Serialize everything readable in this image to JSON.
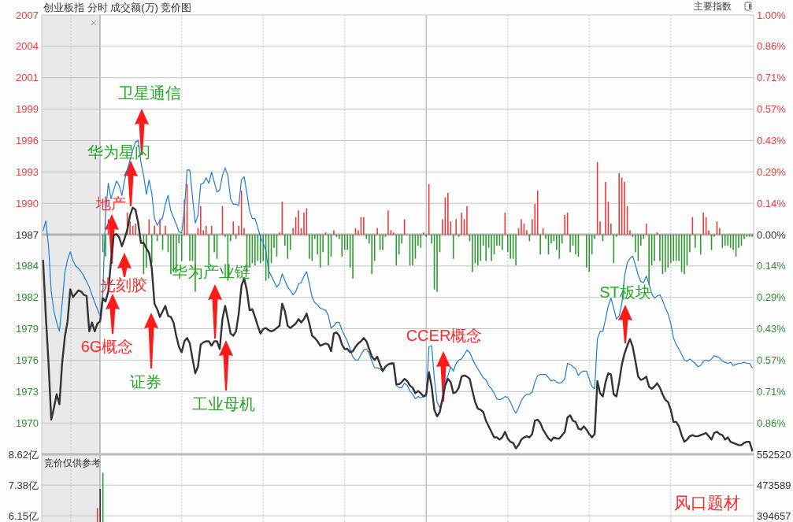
{
  "chart_data": [
    {
      "type": "line",
      "title": "创业板指 分时 成交额(万) 竞价图",
      "categories": [
        null,
        null,
        null,
        null,
        null,
        null,
        null,
        null,
        null,
        null,
        null,
        null,
        null,
        null,
        null,
        null,
        null,
        null,
        null,
        null,
        null,
        null,
        null,
        null,
        null,
        null,
        null,
        null,
        null,
        null,
        null,
        null,
        null,
        null,
        null,
        null,
        null,
        null,
        null,
        null,
        null,
        null,
        null,
        null,
        null,
        null,
        null,
        null,
        null,
        null,
        null,
        null,
        null,
        null,
        null,
        null,
        null,
        null,
        null,
        null,
        null,
        null,
        null,
        null,
        null,
        null,
        null,
        null,
        null,
        null,
        null,
        null,
        null,
        null,
        null,
        null,
        null,
        null,
        null,
        null,
        null,
        null,
        null,
        null,
        null,
        null,
        null,
        null,
        null,
        null,
        null,
        null,
        null,
        null,
        null,
        null,
        null,
        null,
        null,
        null,
        null,
        null,
        null,
        null,
        null,
        null,
        null,
        null,
        null,
        null,
        null,
        null,
        null,
        null,
        null,
        null,
        null,
        null,
        null,
        null,
        null,
        null,
        null,
        null,
        null,
        null,
        null,
        null,
        null,
        null,
        null,
        null,
        null,
        null,
        null,
        null,
        null,
        null,
        null,
        null,
        null,
        null,
        null,
        null,
        null,
        null,
        null,
        null,
        null,
        null,
        null,
        null,
        null,
        null,
        null,
        null,
        null,
        null,
        null,
        null,
        null,
        null,
        null,
        null,
        null,
        null,
        null,
        null,
        null,
        null,
        null,
        null,
        null,
        null,
        null,
        null,
        null,
        null,
        null,
        null,
        null,
        null,
        null,
        null,
        null,
        null,
        null,
        null,
        null,
        null,
        null,
        null,
        null,
        null,
        null,
        null,
        null,
        null,
        null,
        null,
        null,
        null,
        null,
        null,
        null,
        null,
        null,
        null,
        null,
        null,
        null,
        null,
        null,
        null,
        null,
        null,
        null,
        null,
        null,
        null,
        null,
        null,
        null,
        null,
        null,
        null,
        null,
        null,
        null,
        null,
        null,
        null,
        null,
        null,
        null,
        null,
        null,
        null,
        null,
        null,
        null,
        null,
        null,
        null,
        null,
        null,
        null,
        null,
        null,
        null,
        null,
        null,
        null,
        null,
        null,
        null,
        null,
        null,
        null,
        null,
        null,
        null
      ],
      "series": [
        {
          "type": "bar",
          "axis": "y2",
          "color": "#ee3b3b",
          "values": [
            null,
            null,
            null,
            null,
            null,
            null,
            null,
            null,
            null,
            null,
            null,
            null,
            null,
            null,
            null,
            null,
            null,
            null,
            null,
            null,
            null,
            null,
            null,
            null,
            0.07,
            null,
            null,
            null,
            null,
            null,
            null,
            0.1,
            0.06,
            0.04,
            0.05,
            null,
            null,
            null,
            null,
            0.07,
            null,
            0.04,
            null,
            0.07,
            null,
            0.04,
            null,
            null,
            null,
            null,
            null,
            null,
            0.16,
            0.23,
            null,
            null,
            null,
            0.03,
            0.13,
            0.02,
            0.04,
            null,
            0.04,
            null,
            null,
            null,
            0.13,
            null,
            null,
            null,
            0.06,
            null,
            0.04,
            0.2,
            0.03,
            null,
            null,
            null,
            null,
            null,
            null,
            null,
            null,
            null,
            null,
            null,
            null,
            0.01,
            0.15,
            null,
            null,
            null,
            0.03,
            0.08,
            0.11,
            0.03,
            0.1,
            0.12,
            null,
            null,
            null,
            null,
            null,
            null,
            0.01,
            null,
            null,
            0.02,
            null,
            null,
            null,
            null,
            null,
            null,
            null,
            0.03,
            0.02,
            0.08,
            0.08,
            null,
            null,
            null,
            null,
            0.03,
            null,
            null,
            null,
            0.11,
            0.02,
            0.01,
            null,
            null,
            null,
            0.07,
            null,
            null,
            null,
            null,
            null,
            null,
            0.01,
            null,
            0.23,
            null,
            null,
            null,
            null,
            0.07,
            0.17,
            0.19,
            0.06,
            null,
            0.07,
            null,
            0.1,
            0.07,
            0.13,
            null,
            null,
            null,
            null,
            null,
            null,
            null,
            null,
            null,
            null,
            null,
            null,
            null,
            0.1,
            null,
            null,
            null,
            null,
            0.03,
            0.07,
            0.05,
            0.02,
            null,
            0.07,
            0.14,
            0.2,
            null,
            0.03,
            null,
            null,
            null,
            null,
            null,
            null,
            null,
            0.09,
            0.1,
            null,
            null,
            null,
            null,
            null,
            null,
            null,
            null,
            null,
            null,
            0.33,
            0.06,
            null,
            0.24,
            0.15,
            0.05,
            null,
            null,
            0.28,
            0.26,
            0.24,
            0.13,
            0.02,
            null,
            null,
            null,
            null,
            null,
            0.05,
            null,
            null,
            null,
            0.01,
            null,
            null,
            null,
            null,
            null,
            null,
            null,
            null,
            null,
            null,
            null,
            null,
            0.08,
            null,
            null,
            null,
            0.1,
            0.08,
            0.02,
            null,
            null,
            0.06,
            0.03,
            null,
            null,
            null,
            null,
            null,
            null,
            null,
            null,
            null,
            null,
            null,
            null
          ]
        },
        {
          "type": "bar",
          "axis": "y2",
          "color": "#2f9a2f",
          "values": [
            null,
            null,
            null,
            null,
            null,
            null,
            null,
            null,
            null,
            null,
            null,
            null,
            null,
            null,
            null,
            null,
            null,
            null,
            null,
            null,
            null,
            null,
            -0.08,
            -0.1,
            null,
            null,
            null,
            null,
            null,
            null,
            null,
            null,
            null,
            null,
            null,
            null,
            null,
            -0.18,
            -0.15,
            null,
            -0.13,
            null,
            -0.03,
            null,
            -0.07,
            null,
            -0.08,
            -0.18,
            -0.17,
            -0.17,
            -0.04,
            -0.12,
            null,
            null,
            -0.12,
            -0.12,
            -0.26,
            null,
            null,
            null,
            null,
            -0.14,
            null,
            -0.08,
            -0.11,
            null,
            null,
            -0.01,
            -0.21,
            -0.03,
            null,
            -0.02,
            null,
            null,
            null,
            -0.17,
            -0.15,
            -0.13,
            -0.14,
            -0.12,
            -0.13,
            -0.12,
            -0.21,
            -0.2,
            -0.13,
            -0.06,
            -0.1,
            null,
            null,
            -0.05,
            -0.11,
            -0.07,
            null,
            null,
            null,
            null,
            null,
            null,
            -0.11,
            -0.12,
            -0.02,
            -0.09,
            -0.15,
            -0.08,
            null,
            -0.14,
            -0.1,
            null,
            -0.01,
            -0.02,
            -0.1,
            -0.07,
            -0.07,
            -0.15,
            -0.2,
            null,
            null,
            null,
            null,
            -0.02,
            -0.04,
            -0.18,
            -0.12,
            null,
            -0.07,
            -0.07,
            -0.01,
            null,
            null,
            null,
            -0.14,
            -0.09,
            -0.04,
            null,
            null,
            -0.14,
            -0.14,
            -0.11,
            -0.05,
            -0.06,
            null,
            -0.01,
            null,
            -0.04,
            -0.25,
            -0.26,
            -0.08,
            null,
            null,
            null,
            null,
            -0.11,
            null,
            -0.01,
            null,
            null,
            null,
            -0.03,
            -0.17,
            -0.13,
            -0.14,
            -0.12,
            -0.05,
            -0.12,
            -0.06,
            -0.12,
            -0.09,
            -0.05,
            -0.05,
            -0.07,
            null,
            -0.08,
            -0.11,
            -0.11,
            -0.14,
            null,
            null,
            null,
            null,
            -0.03,
            null,
            null,
            null,
            -0.09,
            null,
            -0.02,
            -0.09,
            -0.04,
            -0.03,
            -0.07,
            -0.11,
            -0.04,
            null,
            null,
            -0.08,
            -0.05,
            -0.09,
            -0.1,
            null,
            null,
            -0.15,
            -0.17,
            -0.09,
            -0.02,
            null,
            null,
            -0.03,
            null,
            null,
            null,
            -0.13,
            -0.01,
            null,
            null,
            null,
            null,
            null,
            -0.01,
            -0.08,
            -0.12,
            -0.05,
            -0.02,
            null,
            -0.23,
            -0.14,
            -0.12,
            null,
            -0.12,
            -0.18,
            -0.17,
            -0.15,
            -0.13,
            -0.12,
            -0.12,
            -0.12,
            -0.17,
            -0.18,
            -0.14,
            -0.08,
            null,
            -0.06,
            null,
            -0.09,
            null,
            null,
            null,
            -0.07,
            -0.01,
            null,
            null,
            -0.06,
            -0.05,
            -0.05,
            -0.06,
            -0.07,
            -0.1,
            -0.06,
            -0.05,
            -0.02,
            -0.01,
            -0.01,
            -0.01
          ]
        },
        {
          "color": "#333333",
          "values": [
            1984.9,
            1979.9,
            1975.6,
            1970.5,
            1971.6,
            1972.8,
            1971.9,
            1975.6,
            1978.0,
            1979.4,
            1982.3,
            1981.6,
            1981.9,
            1982.2,
            1982.1,
            1981.8,
            1981.7,
            1978.5,
            1979.3,
            1978.5,
            1979.2,
            1979.4,
            1981.5,
            1981.2,
            1982.1,
            1984.9,
            1987.2,
            1987.3,
            1987.0,
            1986.2,
            1986.9,
            1987.7,
            1989.0,
            1989.7,
            1989.5,
            1988.3,
            1986.5,
            1986.5,
            1986.0,
            1985.6,
            1984.2,
            1981.0,
            1980.5,
            1979.8,
            1980.3,
            1980.8,
            1979.9,
            1979.8,
            1979.3,
            1978.1,
            1977.1,
            1976.6,
            1977.6,
            1977.9,
            1977.4,
            1976.0,
            1974.7,
            1975.3,
            1977.3,
            1977.5,
            1977.6,
            1977.6,
            1977.2,
            1977.6,
            1977.6,
            1976.9,
            1979.6,
            1980.8,
            1979.6,
            1978.3,
            1978.1,
            1978.5,
            1980.1,
            1982.6,
            1983.3,
            1982.2,
            1980.4,
            1980.5,
            1979.8,
            1979.0,
            1978.3,
            1978.7,
            1978.8,
            1978.6,
            1978.5,
            1978.6,
            1978.8,
            1979.0,
            1981.0,
            1980.3,
            1979.0,
            1978.8,
            1979.0,
            1979.2,
            1979.6,
            1979.3,
            1979.6,
            1980.1,
            1979.2,
            1978.1,
            1977.9,
            1977.6,
            1977.2,
            1977.3,
            1977.4,
            1977.3,
            1976.7,
            1978.3,
            1978.4,
            1978.1,
            1977.3,
            1976.9,
            1976.9,
            1976.6,
            1976.7,
            1977.1,
            1977.4,
            1977.6,
            1977.9,
            1977.6,
            1976.9,
            1976.2,
            1975.9,
            1976.2,
            1975.5,
            1974.9,
            1975.3,
            1975.5,
            1975.6,
            1975.6,
            1973.7,
            1973.7,
            1973.9,
            1974.2,
            1974.0,
            1973.6,
            1973.4,
            1972.9,
            1973.1,
            1972.9,
            1972.6,
            1972.8,
            1974.8,
            1973.5,
            1971.4,
            1970.8,
            1971.2,
            1972.4,
            1973.6,
            1974.2,
            1973.9,
            1972.9,
            1973.0,
            1973.4,
            1974.4,
            1974.5,
            1974.4,
            1974.2,
            1973.1,
            1972.1,
            1971.5,
            1971.4,
            1971.2,
            1970.4,
            1969.9,
            1969.4,
            1968.9,
            1968.9,
            1968.7,
            1968.9,
            1969.4,
            1968.8,
            1968.5,
            1968.4,
            1967.9,
            1968.2,
            1968.7,
            1968.9,
            1969.0,
            1968.9,
            1969.2,
            1970.4,
            1970.5,
            1970.2,
            1969.6,
            1969.2,
            1968.8,
            1968.6,
            1968.9,
            1968.8,
            1968.8,
            1969.1,
            1969.4,
            1970.7,
            1970.9,
            1970.4,
            1970.3,
            1969.7,
            1969.6,
            1969.9,
            1969.6,
            1969.2,
            1968.9,
            1969.2,
            1974.0,
            1972.9,
            1972.6,
            1973.9,
            1974.7,
            1974.6,
            1972.8,
            1972.6,
            1973.9,
            1975.5,
            1976.5,
            1977.2,
            1977.8,
            1977.1,
            1975.8,
            1974.4,
            1974.1,
            1974.2,
            1974.4,
            1973.5,
            1973.3,
            1973.5,
            1973.8,
            1973.4,
            1972.8,
            1972.3,
            1972.1,
            1971.4,
            1970.3,
            1970.3,
            1969.9,
            1969.1,
            1968.5,
            1968.7,
            1969.0,
            1969.1,
            1969.0,
            1969.0,
            1969.1,
            1969.2,
            1969.3,
            1969.0,
            1968.7,
            1969.3,
            1969.4,
            1969.2,
            1969.1,
            1968.7,
            1968.9,
            1968.5,
            1968.4,
            1968.3,
            1968.2,
            1968.2,
            1968.4,
            1968.5,
            1968.5,
            1967.7
          ]
        },
        {
          "color": "#1c7ed6",
          "values": [
            1987.6,
            1988.5,
            1986.2,
            1982.1,
            1980.3,
            1979.3,
            1978.5,
            1981.0,
            1983.8,
            1985.0,
            1985.7,
            1984.9,
            1984.4,
            1984.2,
            1983.9,
            1983.5,
            1983.0,
            1982.5,
            1981.8,
            1981.1,
            1980.5,
            1979.9,
            1982.1,
            1989.2,
            1991.9,
            1990.5,
            1991.3,
            1992.1,
            1991.7,
            1990.8,
            1992.2,
            1993.1,
            1994.0,
            1994.9,
            1995.6,
            1995.8,
            1993.8,
            1992.6,
            1990.9,
            1992.2,
            1991.0,
            1988.7,
            1988.1,
            1988.5,
            1988.8,
            1990.0,
            1990.8,
            1989.4,
            1988.8,
            1988.2,
            1987.5,
            1987.4,
            1989.5,
            1993.1,
            1993.1,
            1990.6,
            1988.3,
            1989.0,
            1991.8,
            1991.9,
            1992.4,
            1991.9,
            1992.9,
            1992.0,
            1991.1,
            1991.3,
            1992.6,
            1993.3,
            1992.6,
            1990.5,
            1990.0,
            1990.0,
            1989.9,
            1992.2,
            1992.5,
            1991.0,
            1989.4,
            1988.7,
            1988.7,
            1987.9,
            1987.0,
            1986.5,
            1985.8,
            1984.0,
            1983.5,
            1983.0,
            1982.5,
            1982.8,
            1983.7,
            1983.1,
            1982.5,
            1982.2,
            1981.8,
            1982.1,
            1982.8,
            1982.9,
            1983.5,
            1983.9,
            1982.8,
            1981.6,
            1981.1,
            1980.9,
            1980.6,
            1980.5,
            1980.4,
            1979.9,
            1978.8,
            1979.0,
            1979.3,
            1979.3,
            1978.6,
            1978.1,
            1977.6,
            1976.9,
            1976.2,
            1975.9,
            1975.9,
            1976.4,
            1976.8,
            1976.9,
            1976.5,
            1975.8,
            1975.2,
            1975.2,
            1975.1,
            1974.9,
            1975.3,
            1975.5,
            1975.5,
            1975.5,
            1973.6,
            1973.4,
            1973.4,
            1973.8,
            1973.6,
            1973.1,
            1972.8,
            1972.4,
            1972.6,
            1972.5,
            1972.6,
            1972.6,
            1977.1,
            1977.2,
            1974.2,
            1972.1,
            1971.6,
            1972.4,
            1973.9,
            1974.5,
            1975.3,
            1974.9,
            1975.6,
            1975.9,
            1976.0,
            1976.4,
            1976.8,
            1976.6,
            1976.0,
            1975.5,
            1975.1,
            1974.7,
            1974.3,
            1974.1,
            1973.6,
            1973.3,
            1972.9,
            1972.4,
            1972.3,
            1972.4,
            1972.6,
            1972.5,
            1972.1,
            1971.5,
            1971.1,
            1971.6,
            1972.2,
            1972.6,
            1972.8,
            1972.8,
            1973.0,
            1973.9,
            1974.5,
            1974.6,
            1974.6,
            1974.6,
            1974.3,
            1974.0,
            1974.1,
            1973.9,
            1973.8,
            1973.9,
            1974.2,
            1975.6,
            1975.5,
            1975.3,
            1975.1,
            1974.5,
            1974.8,
            1974.9,
            1974.9,
            1974.2,
            1973.5,
            1973.3,
            1977.8,
            1978.5,
            1978.5,
            1979.6,
            1980.8,
            1981.5,
            1980.6,
            1979.6,
            1979.9,
            1981.0,
            1983.5,
            1984.7,
            1985.1,
            1985.3,
            1984.5,
            1983.6,
            1983.0,
            1982.9,
            1983.5,
            1982.8,
            1981.9,
            1981.5,
            1981.7,
            1981.8,
            1981.3,
            1980.6,
            1980.1,
            1979.2,
            1977.9,
            1977.3,
            1976.9,
            1976.4,
            1975.9,
            1975.8,
            1976.0,
            1975.8,
            1975.6,
            1975.3,
            1975.4,
            1975.8,
            1975.9,
            1975.8,
            1976.0,
            1976.3,
            1976.2,
            1976.1,
            1975.8,
            1975.7,
            1975.6,
            1975.7,
            1975.4,
            1975.5,
            1975.6,
            1975.6,
            1975.7,
            1975.6,
            1975.6,
            1975.2
          ]
        }
      ],
      "ylim": [
        1967.37,
        2007.13
      ],
      "yticks": [
        {
          "value": 1970.21,
          "label": "1970"
        },
        {
          "value": 1973.05,
          "label": "1973"
        },
        {
          "value": 1975.89,
          "label": "1976"
        },
        {
          "value": 1978.73,
          "label": "1979"
        },
        {
          "value": 1981.57,
          "label": "1982"
        },
        {
          "value": 1984.41,
          "label": "1984"
        },
        {
          "value": 1987.25,
          "label": "1987"
        },
        {
          "value": 1990.09,
          "label": "1990"
        },
        {
          "value": 1992.93,
          "label": "1993"
        },
        {
          "value": 1995.77,
          "label": "1996"
        },
        {
          "value": 1998.61,
          "label": "1999"
        },
        {
          "value": 2001.45,
          "label": "2001"
        },
        {
          "value": 2004.29,
          "label": "2004"
        },
        {
          "value": 2007.13,
          "label": "2007"
        }
      ],
      "y2lim": [
        -1.0,
        1.0
      ],
      "y2ticks": [
        {
          "value": -0.8571,
          "label": "0.86%"
        },
        {
          "value": -0.7143,
          "label": "0.71%"
        },
        {
          "value": -0.5714,
          "label": "0.57%"
        },
        {
          "value": -0.4286,
          "label": "0.43%"
        },
        {
          "value": -0.2857,
          "label": "0.29%"
        },
        {
          "value": -0.1429,
          "label": "0.14%"
        },
        {
          "value": 0,
          "label": "0.00%"
        },
        {
          "value": 0.1429,
          "label": "0.14%"
        },
        {
          "value": 0.2857,
          "label": "0.29%"
        },
        {
          "value": 0.4286,
          "label": "0.43%"
        },
        {
          "value": 0.5714,
          "label": "0.57%"
        },
        {
          "value": 0.7143,
          "label": "0.71%"
        },
        {
          "value": 0.8571,
          "label": "0.86%"
        },
        {
          "value": 1.0,
          "label": "1.00%"
        }
      ],
      "ref_lines": [
        {
          "axis": "y",
          "value": 1987.25,
          "color": "#b4b4b4"
        }
      ],
      "grid": true,
      "annotations": [
        "主要指数",
        "卫星通信",
        "华为星闪",
        "地产",
        "光刻胶",
        "6G概念",
        "证券",
        "华为产业链",
        "工业母机",
        "CCER概念",
        "ST板块"
      ]
    },
    {
      "type": "bar",
      "categories": [
        null,
        null,
        null,
        null,
        null,
        null,
        null,
        null,
        null,
        null,
        null,
        null,
        null,
        null,
        null,
        null,
        null,
        null,
        null,
        null,
        null,
        null,
        null,
        null,
        null,
        null,
        null,
        null,
        null,
        null,
        null,
        null,
        null,
        null,
        null,
        null,
        null,
        null,
        null,
        null,
        null,
        null,
        null,
        null,
        null,
        null,
        null,
        null,
        null,
        null,
        null,
        null,
        null,
        null,
        null,
        null,
        null,
        null,
        null,
        null,
        null,
        null,
        null,
        null,
        null,
        null,
        null,
        null,
        null,
        null,
        null,
        null,
        null,
        null,
        null,
        null,
        null,
        null,
        null,
        null,
        null,
        null,
        null,
        null,
        null,
        null,
        null,
        null,
        null,
        null,
        null,
        null,
        null,
        null,
        null,
        null,
        null,
        null,
        null,
        null,
        null,
        null,
        null,
        null,
        null,
        null,
        null,
        null,
        null,
        null,
        null,
        null,
        null,
        null,
        null,
        null,
        null,
        null,
        null,
        null,
        null,
        null,
        null,
        null,
        null,
        null,
        null,
        null,
        null,
        null,
        null,
        null,
        null,
        null,
        null,
        null,
        null,
        null,
        null,
        null,
        null,
        null,
        null,
        null,
        null,
        null,
        null,
        null,
        null,
        null,
        null,
        null,
        null,
        null,
        null,
        null,
        null,
        null,
        null,
        null,
        null,
        null,
        null,
        null,
        null,
        null,
        null,
        null,
        null,
        null,
        null,
        null,
        null,
        null,
        null,
        null,
        null,
        null,
        null,
        null,
        null,
        null,
        null,
        null,
        null,
        null,
        null,
        null,
        null,
        null,
        null,
        null,
        null,
        null,
        null,
        null,
        null,
        null,
        null,
        null,
        null,
        null,
        null,
        null,
        null,
        null,
        null,
        null,
        null,
        null,
        null,
        null,
        null,
        null,
        null,
        null,
        null,
        null,
        null,
        null,
        null,
        null,
        null,
        null,
        null,
        null,
        null,
        null,
        null,
        null,
        null,
        null,
        null,
        null,
        null,
        null,
        null,
        null,
        null,
        null,
        null,
        null,
        null,
        null,
        null,
        null,
        null,
        null,
        null,
        null,
        null,
        null,
        null,
        null,
        null,
        null,
        null,
        null,
        null,
        null,
        null,
        null
      ],
      "values": [
        null,
        null,
        null,
        null,
        null,
        null,
        null,
        null,
        null,
        null,
        null,
        null,
        null,
        null,
        null,
        null,
        null,
        null,
        null,
        null,
        6.46,
        7.23,
        7.88,
        null,
        null,
        null,
        null,
        null,
        null,
        null,
        null,
        null,
        null,
        null,
        null,
        null,
        null,
        null,
        null,
        null,
        null,
        null,
        null,
        null,
        null,
        null,
        null,
        null,
        null,
        null,
        null,
        null,
        null,
        null,
        null,
        null,
        null,
        null,
        null,
        null,
        null,
        null,
        null,
        null,
        null,
        null,
        null,
        null,
        null,
        null,
        null,
        null,
        null,
        null,
        null,
        null,
        null,
        null,
        null,
        null,
        null,
        null,
        null,
        null,
        null,
        null,
        null,
        null,
        null,
        null,
        null,
        null,
        null,
        null,
        null,
        null,
        null,
        null,
        null,
        null,
        null,
        null,
        null,
        null,
        null,
        null,
        null,
        null,
        null,
        null,
        null,
        null,
        null,
        null,
        null,
        null,
        null,
        null,
        null,
        null,
        null,
        null,
        null,
        null,
        null,
        null,
        null,
        null,
        null,
        null,
        null,
        null,
        null,
        null,
        null,
        null,
        null,
        null,
        null,
        null,
        null,
        null,
        null,
        null,
        null,
        null,
        null,
        null,
        null,
        null,
        null,
        null,
        null,
        null,
        null,
        null,
        null,
        null,
        null,
        null,
        null,
        null,
        null,
        null,
        null,
        null,
        null,
        null,
        null,
        null,
        null,
        null,
        null,
        null,
        null,
        null,
        null,
        null,
        null,
        null,
        null,
        null,
        null,
        null,
        null,
        null,
        null,
        null,
        null,
        null,
        null,
        null,
        null,
        null,
        null,
        null,
        null,
        null,
        null,
        null,
        null,
        null,
        null,
        null,
        null,
        null,
        null,
        null,
        null,
        null,
        null,
        null,
        null,
        null,
        null,
        null,
        null,
        null,
        null,
        null,
        null,
        null,
        null,
        null,
        null,
        null,
        null,
        null,
        null,
        null,
        null,
        null,
        null,
        null,
        null,
        null,
        null,
        null,
        null,
        null,
        null,
        null,
        null,
        null,
        null,
        null,
        null,
        null,
        null,
        null,
        null,
        null,
        null,
        null,
        null,
        null,
        null,
        null,
        null,
        null,
        null,
        null
      ],
      "colors": [
        null,
        null,
        null,
        null,
        null,
        null,
        null,
        null,
        null,
        null,
        null,
        null,
        null,
        null,
        null,
        null,
        null,
        null,
        null,
        null,
        "#e8403c",
        "#333333",
        "#2f9a2f",
        null,
        null,
        null,
        null,
        null,
        null,
        null,
        null,
        null,
        null,
        null,
        null,
        null,
        null,
        null,
        null,
        null,
        null,
        null,
        null,
        null,
        null,
        null,
        null,
        null,
        null,
        null,
        null,
        null,
        null,
        null,
        null,
        null,
        null,
        null,
        null,
        null,
        null,
        null,
        null,
        null,
        null,
        null,
        null,
        null,
        null,
        null,
        null,
        null,
        null,
        null,
        null,
        null,
        null,
        null,
        null,
        null,
        null,
        null,
        null,
        null,
        null,
        null,
        null,
        null,
        null,
        null,
        null,
        null,
        null,
        null,
        null,
        null,
        null,
        null,
        null,
        null,
        null,
        null,
        null,
        null,
        null,
        null,
        null,
        null,
        null,
        null,
        null,
        null,
        null,
        null,
        null,
        null,
        null,
        null,
        null,
        null,
        null,
        null,
        null,
        null,
        null,
        null,
        null,
        null,
        null,
        null,
        null,
        null,
        null,
        null,
        null,
        null,
        null,
        null,
        null,
        null,
        null,
        null,
        null,
        null,
        null,
        null,
        null,
        null,
        null,
        null,
        null,
        null,
        null,
        null,
        null,
        null,
        null,
        null,
        null,
        null,
        null,
        null,
        null,
        null,
        null,
        null,
        null,
        null,
        null,
        null,
        null,
        null,
        null,
        null,
        null,
        null,
        null,
        null,
        null,
        null,
        null,
        null,
        null,
        null,
        null,
        null,
        null,
        null,
        null,
        null,
        null,
        null,
        null,
        null,
        null,
        null,
        null,
        null,
        null,
        null,
        null,
        null,
        null,
        null,
        null,
        null,
        null,
        null,
        null,
        null,
        null,
        null,
        null,
        null,
        null,
        null,
        null,
        null,
        null,
        null,
        null,
        null,
        null,
        null,
        null,
        null,
        null,
        null,
        null,
        null,
        null,
        null,
        null,
        null,
        null,
        null,
        null,
        null,
        null,
        null,
        null,
        null,
        null,
        null,
        null,
        null,
        null,
        null,
        null,
        null,
        null,
        null,
        null,
        null,
        null,
        null,
        null,
        null,
        null,
        null,
        null,
        null
      ],
      "ylim": [
        5.9,
        8.62
      ],
      "yticks": [
        {
          "value": 8.62,
          "label": "8.62亿"
        },
        {
          "value": 7.38,
          "label": "7.38亿"
        },
        {
          "value": 6.15,
          "label": "6.15亿"
        }
      ],
      "y2lim": [
        378679,
        552520
      ],
      "y2ticks": [
        552520,
        473589,
        394657
      ],
      "grid": true,
      "annotations": [
        "竞价仅供参考",
        "风口题材"
      ]
    }
  ]
}
